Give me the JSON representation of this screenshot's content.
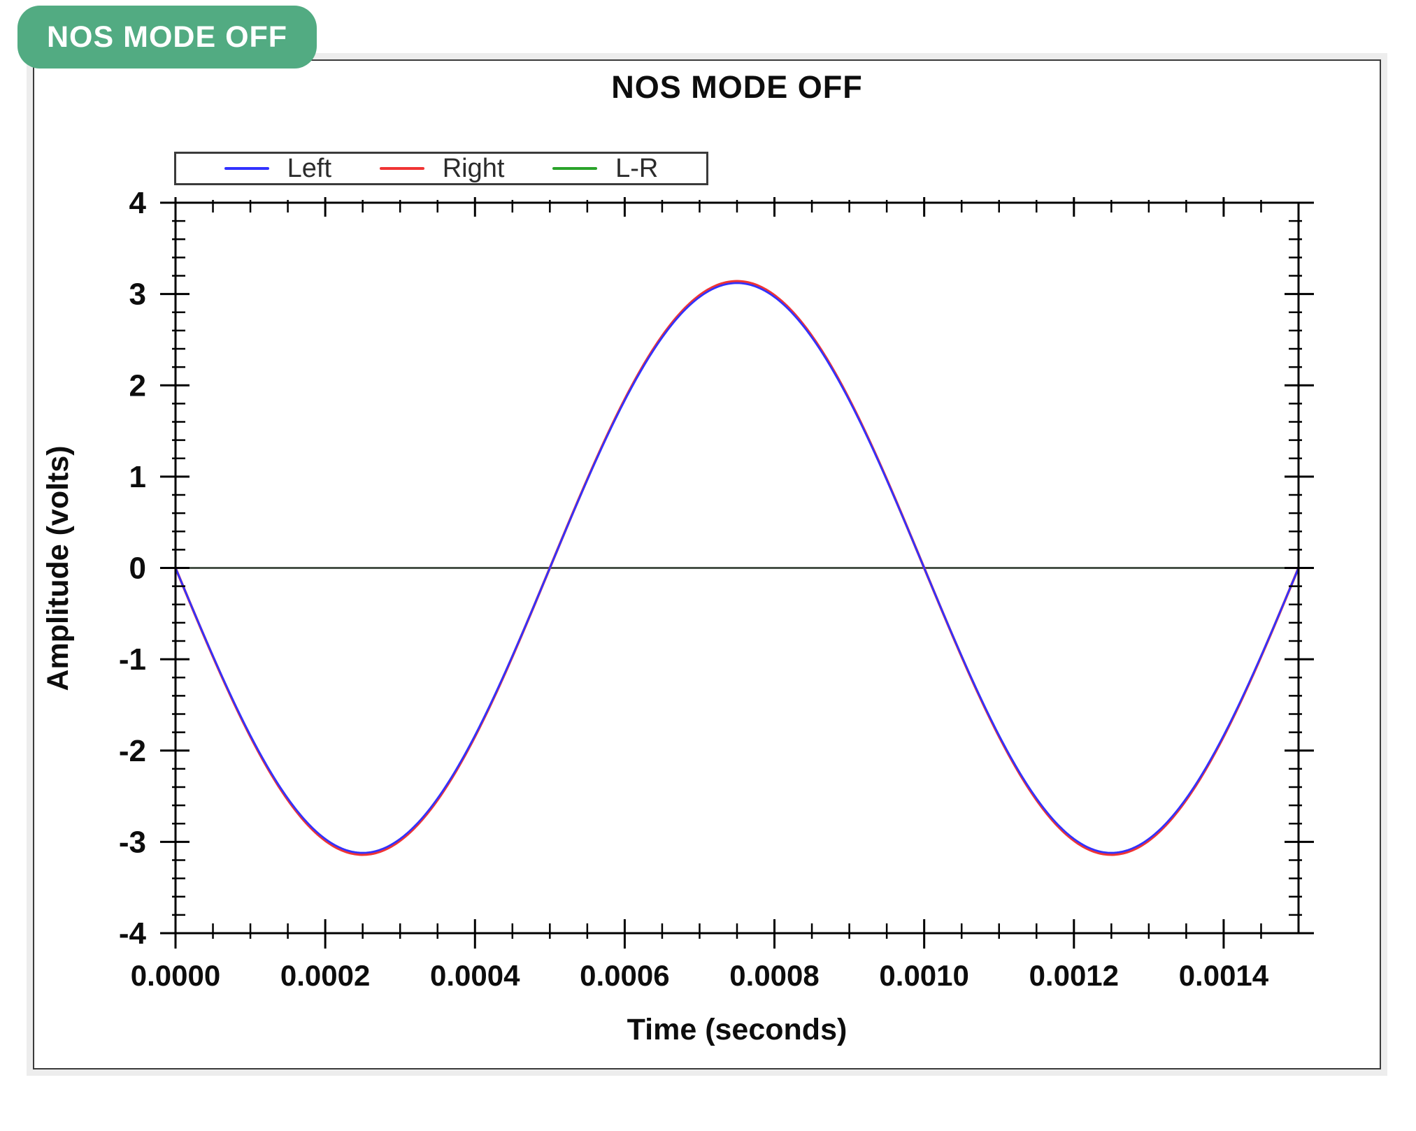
{
  "badge": {
    "label": "NOS MODE OFF",
    "color": "#52ab82",
    "text_color": "#ffffff"
  },
  "chart": {
    "title": "NOS MODE OFF"
  },
  "legend": {
    "items": [
      {
        "label": "Left",
        "color": "#3232ff"
      },
      {
        "label": "Right",
        "color": "#f03434"
      },
      {
        "label": "L-R",
        "color": "#2aa32a"
      }
    ]
  },
  "chart_data": {
    "type": "line",
    "title": "NOS MODE OFF",
    "xlabel": "Time (seconds)",
    "ylabel": "Amplitude (volts)",
    "xlim": [
      0,
      0.0015
    ],
    "ylim": [
      -4,
      4
    ],
    "x_major_step": 0.0002,
    "x_minor_step": 5e-05,
    "y_major_step": 1,
    "y_minor_step": 0.2,
    "x_tick_labels": [
      "0.0000",
      "0.0002",
      "0.0004",
      "0.0006",
      "0.0008",
      "0.0010",
      "0.0012",
      "0.0014"
    ],
    "y_tick_labels": [
      "4",
      "3",
      "2",
      "1",
      "0",
      "-1",
      "-2",
      "-3",
      "-4"
    ],
    "grid": false,
    "zero_line": true,
    "zero_line_color": "#3a3a3a",
    "legend_position": "top-left-above-plot",
    "waveform": "y = -A * sin(2*pi*f*t), f = 1000 Hz (period 0.001 s)",
    "series": [
      {
        "name": "Left",
        "color": "#3232ff",
        "amplitude": 3.12,
        "frequency_hz": 1000,
        "t": [
          0,
          0.000125,
          0.00025,
          0.000375,
          0.0005,
          0.000625,
          0.00075,
          0.000875,
          0.001,
          0.001125,
          0.00125,
          0.001375,
          0.0015
        ],
        "v": [
          0,
          -2.21,
          -3.12,
          -2.21,
          0,
          2.21,
          3.12,
          2.21,
          0,
          -2.21,
          -3.12,
          -2.21,
          0
        ]
      },
      {
        "name": "Right",
        "color": "#f03434",
        "amplitude": 3.14,
        "frequency_hz": 1000,
        "t": [
          0,
          0.000125,
          0.00025,
          0.000375,
          0.0005,
          0.000625,
          0.00075,
          0.000875,
          0.001,
          0.001125,
          0.00125,
          0.001375,
          0.0015
        ],
        "v": [
          0,
          -2.22,
          -3.14,
          -2.22,
          0,
          2.22,
          3.14,
          2.22,
          0,
          -2.22,
          -3.14,
          -2.22,
          0
        ]
      },
      {
        "name": "L-R",
        "color": "#2aa32a",
        "amplitude": 0,
        "frequency_hz": 1000,
        "t": [
          0,
          0.00025,
          0.0005,
          0.00075,
          0.001,
          0.00125,
          0.0015
        ],
        "v": [
          0,
          0,
          0,
          0,
          0,
          0,
          0
        ]
      }
    ]
  }
}
